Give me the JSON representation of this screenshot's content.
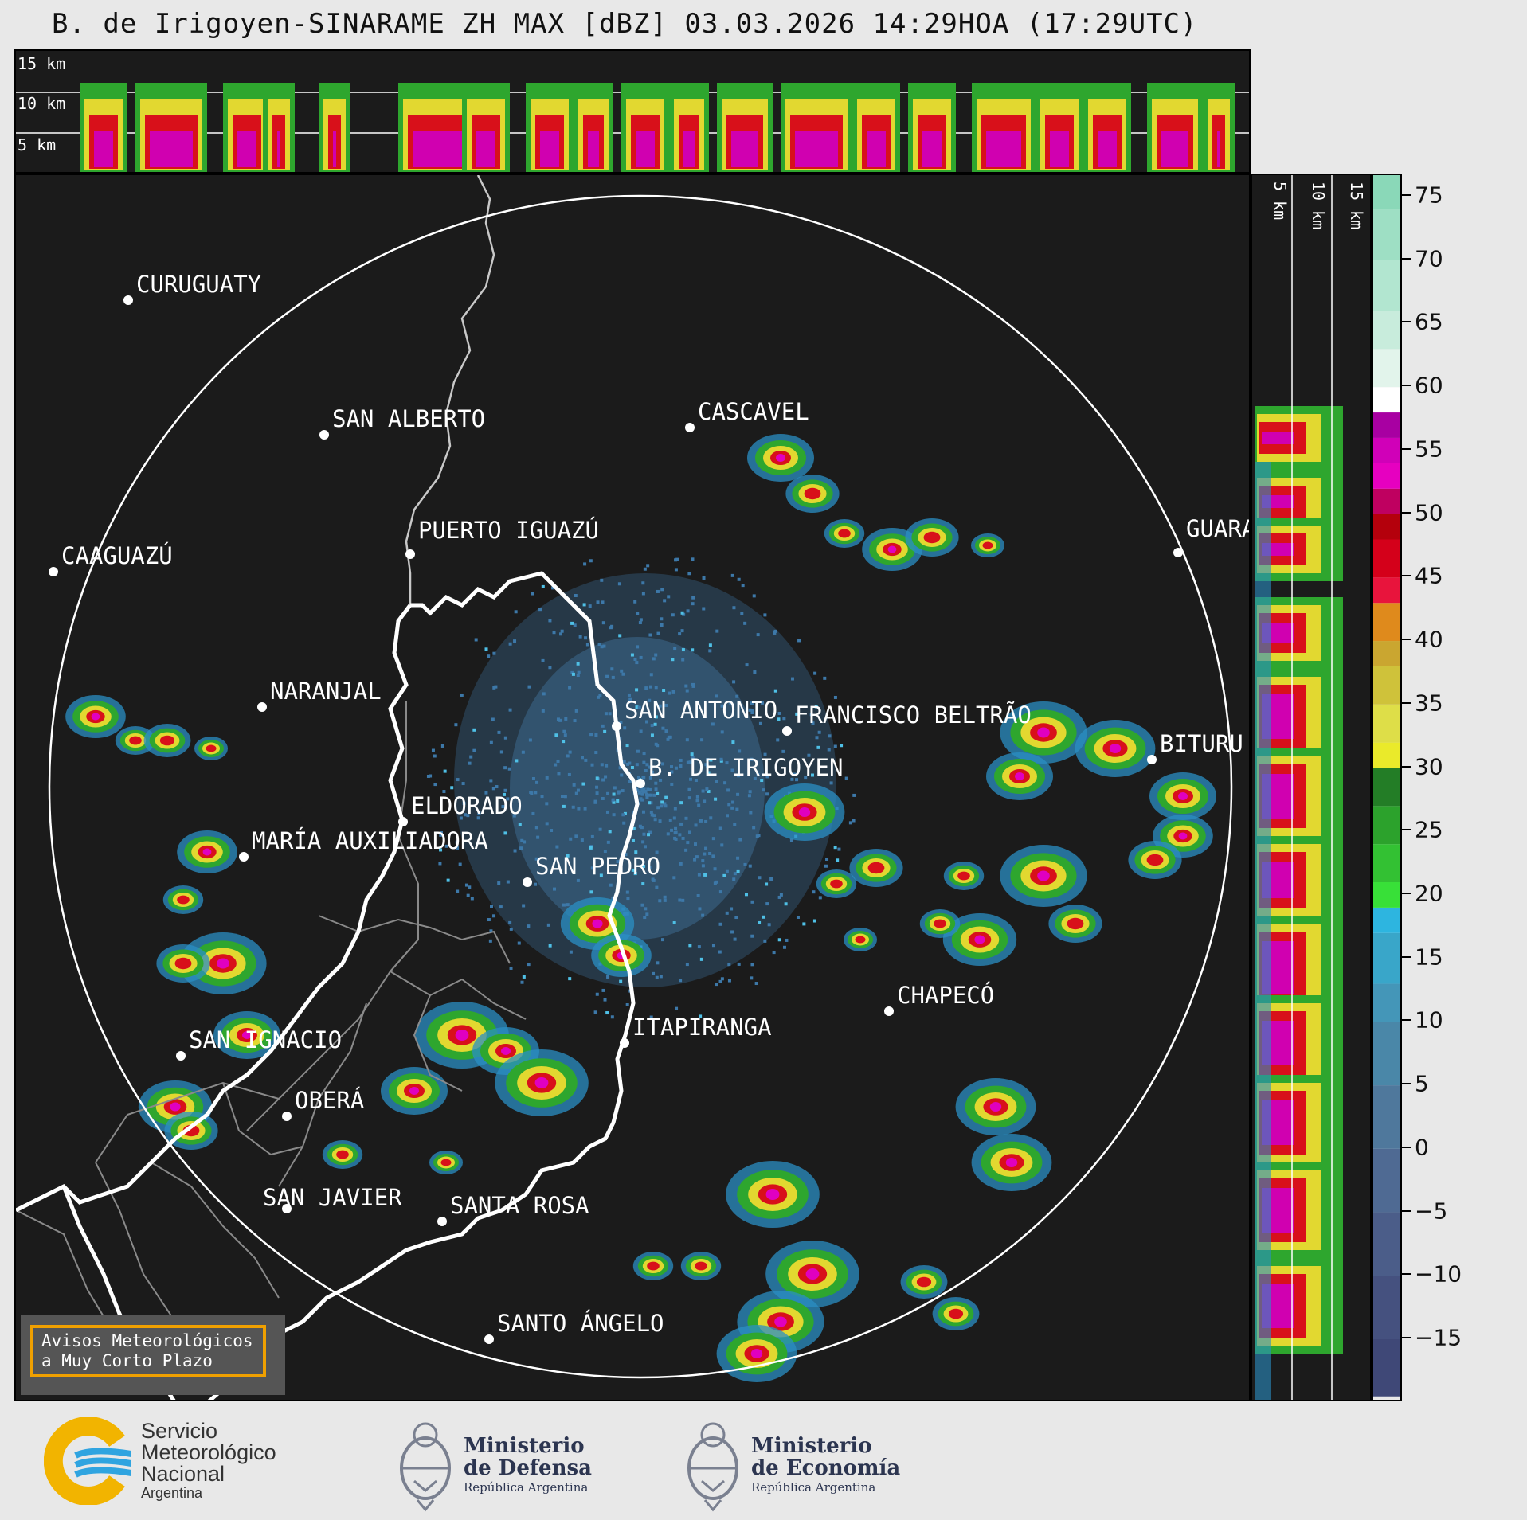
{
  "title": "B. de Irigoyen-SINARAME ZH MAX [dBZ] 03.03.2026 14:29HOA (17:29UTC)",
  "top_profile": {
    "height_labels": [
      "15 km",
      "10 km",
      "5 km"
    ]
  },
  "side_profile": {
    "height_labels": [
      "5 km",
      "10 km",
      "15 km"
    ]
  },
  "colorbar": {
    "unit": "dBZ",
    "ticks": [
      "75",
      "70",
      "65",
      "60",
      "55",
      "50",
      "45",
      "40",
      "35",
      "30",
      "25",
      "20",
      "15",
      "10",
      "5",
      "0",
      "−5",
      "−10",
      "−15"
    ]
  },
  "map": {
    "radar_site": "B. DE IRIGOYEN",
    "cities": [
      {
        "name": "CURUGUATY"
      },
      {
        "name": "SAN ALBERTO"
      },
      {
        "name": "CASCAVEL"
      },
      {
        "name": "CAAGUAZÚ"
      },
      {
        "name": "GUARA"
      },
      {
        "name": "PUERTO IGUAZÚ"
      },
      {
        "name": "NARANJAL"
      },
      {
        "name": "SAN ANTONIO"
      },
      {
        "name": "FRANCISCO BELTRÃO"
      },
      {
        "name": "BITURU"
      },
      {
        "name": "B. DE IRIGOYEN"
      },
      {
        "name": "ELDORADO"
      },
      {
        "name": "MARÍA AUXILIADORA"
      },
      {
        "name": "SAN PEDRO"
      },
      {
        "name": "ITAPIRANGA"
      },
      {
        "name": "CHAPECÓ"
      },
      {
        "name": "SAN IGNACIO"
      },
      {
        "name": "OBERÁ"
      },
      {
        "name": "SAN JAVIER"
      },
      {
        "name": "SANTA ROSA"
      },
      {
        "name": "SANTO ÁNGELO"
      }
    ]
  },
  "warning_box": {
    "line1": "Avisos Meteorológicos",
    "line2": "a Muy Corto Plazo"
  },
  "logos": {
    "smn": {
      "line1": "Servicio",
      "line2": "Meteorológico",
      "line3": "Nacional",
      "line4": "Argentina"
    },
    "defensa": {
      "line1": "Ministerio",
      "line2": "de Defensa",
      "line3": "República Argentina"
    },
    "economia": {
      "line1": "Ministerio",
      "line2": "de Economía",
      "line3": "República Argentina"
    }
  },
  "colors": {
    "panel_bg": "#1b1b1b",
    "range_ring": "#ffffff",
    "border_international": "#ffffff",
    "border_provincial": "#8a8a8a",
    "warning_border": "#f0a000"
  }
}
